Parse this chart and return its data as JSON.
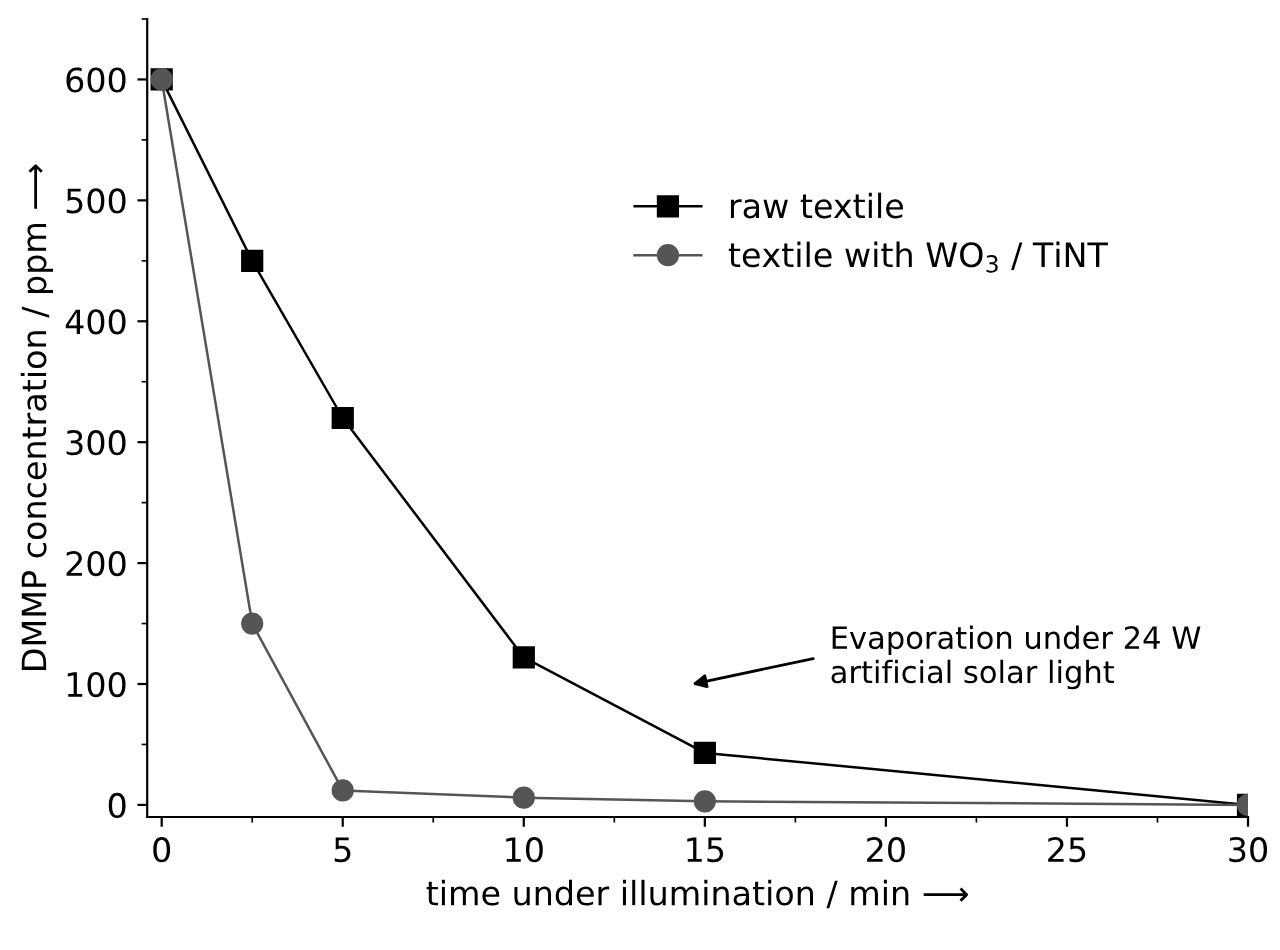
{
  "chart_data": {
    "type": "line",
    "xlabel": "time under illumination / min ⟶",
    "ylabel": "DMMP concentration / ppm ⟶",
    "x": [
      0,
      2.5,
      5,
      10,
      15,
      30
    ],
    "series": [
      {
        "name": "raw textile",
        "color": "#000000",
        "marker": "square",
        "values": [
          600,
          450,
          320,
          122,
          43,
          0
        ]
      },
      {
        "name": "textile with WO$_{3}$ / TiNT",
        "color": "#555555",
        "marker": "circle",
        "values": [
          600,
          150,
          12,
          6,
          3,
          0
        ]
      }
    ],
    "xlim": [
      -0.4,
      30
    ],
    "ylim": [
      -10,
      650
    ],
    "xticks": [
      0,
      5,
      10,
      15,
      20,
      25,
      30
    ],
    "yticks": [
      0,
      100,
      200,
      300,
      400,
      500,
      600
    ],
    "annotations": [
      "Evaporation under 24 W\nartificial solar light"
    ],
    "legend": "top right",
    "grid": false,
    "line_style": "solid"
  }
}
